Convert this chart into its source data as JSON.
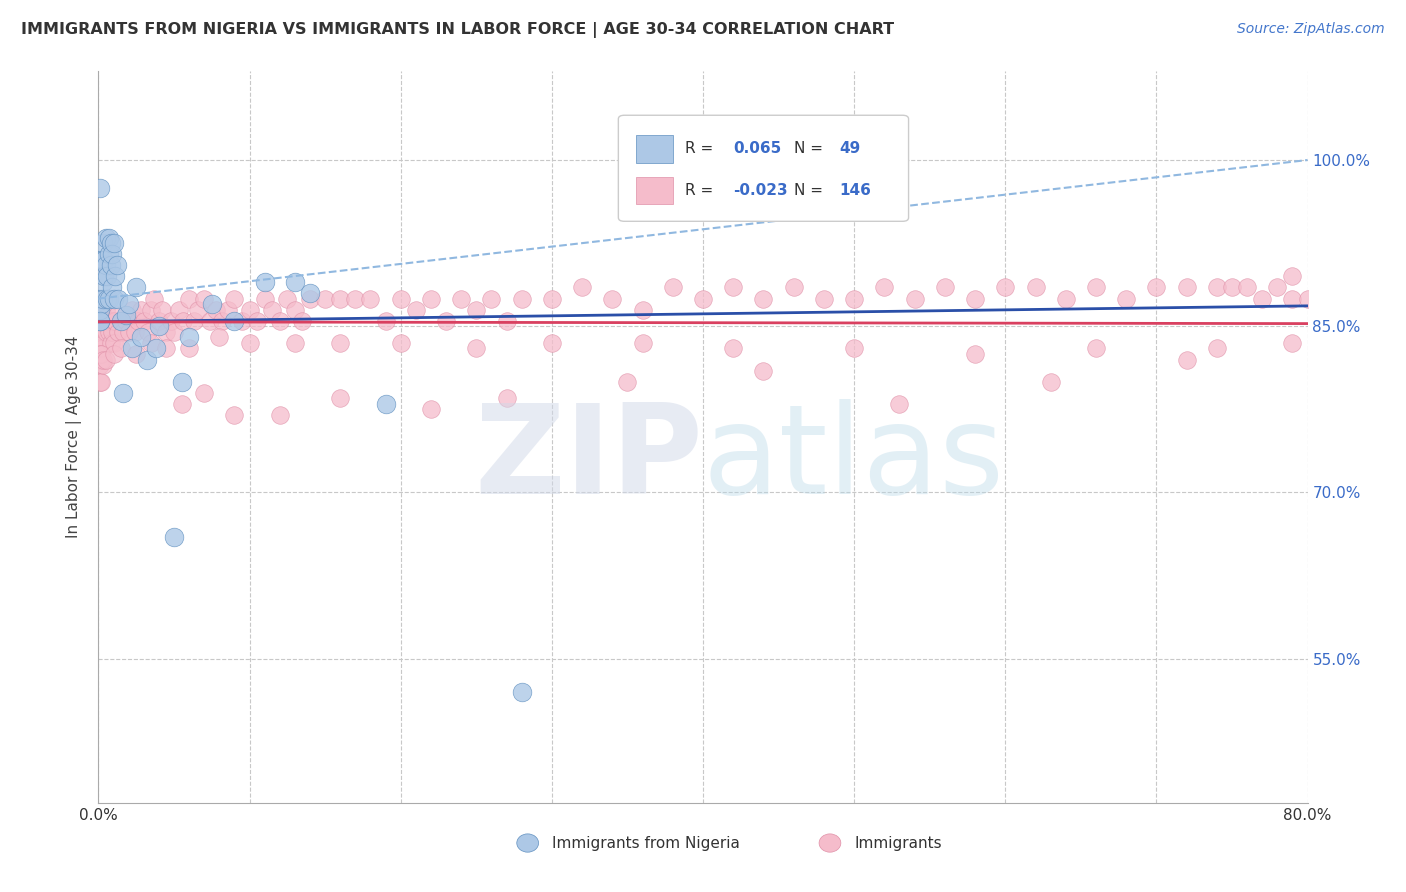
{
  "title": "IMMIGRANTS FROM NIGERIA VS IMMIGRANTS IN LABOR FORCE | AGE 30-34 CORRELATION CHART",
  "source": "Source: ZipAtlas.com",
  "ylabel": "In Labor Force | Age 30-34",
  "xlim": [
    0.0,
    0.8
  ],
  "ylim": [
    0.42,
    1.08
  ],
  "yticks": [
    0.55,
    0.7,
    0.85,
    1.0
  ],
  "ytick_labels": [
    "55.0%",
    "70.0%",
    "85.0%",
    "100.0%"
  ],
  "xtick_labels": [
    "0.0%",
    "80.0%"
  ],
  "blue_R": 0.065,
  "blue_N": 49,
  "pink_R": -0.023,
  "pink_N": 146,
  "blue_color": "#adc8e6",
  "pink_color": "#f5bccb",
  "blue_line_color": "#2a4fa8",
  "pink_line_color": "#d94060",
  "blue_dash_color": "#90b8e0",
  "grid_color": "#c8c8c8",
  "blue_x": [
    0.001,
    0.001,
    0.001,
    0.002,
    0.002,
    0.003,
    0.003,
    0.003,
    0.003,
    0.004,
    0.004,
    0.005,
    0.005,
    0.006,
    0.006,
    0.007,
    0.007,
    0.007,
    0.008,
    0.008,
    0.009,
    0.009,
    0.01,
    0.01,
    0.011,
    0.012,
    0.013,
    0.015,
    0.016,
    0.018,
    0.02,
    0.022,
    0.025,
    0.028,
    0.032,
    0.038,
    0.04,
    0.05,
    0.055,
    0.06,
    0.075,
    0.09,
    0.11,
    0.13,
    0.14,
    0.19,
    0.28,
    0.001,
    0.001
  ],
  "blue_y": [
    0.855,
    0.865,
    0.875,
    0.87,
    0.91,
    0.925,
    0.91,
    0.89,
    0.875,
    0.91,
    0.895,
    0.93,
    0.905,
    0.895,
    0.875,
    0.93,
    0.915,
    0.875,
    0.925,
    0.905,
    0.915,
    0.885,
    0.925,
    0.875,
    0.895,
    0.905,
    0.875,
    0.855,
    0.79,
    0.86,
    0.87,
    0.83,
    0.885,
    0.84,
    0.82,
    0.83,
    0.85,
    0.66,
    0.8,
    0.84,
    0.87,
    0.855,
    0.89,
    0.89,
    0.88,
    0.78,
    0.52,
    0.975,
    0.855
  ],
  "pink_x": [
    0.001,
    0.001,
    0.001,
    0.001,
    0.001,
    0.001,
    0.002,
    0.002,
    0.002,
    0.002,
    0.003,
    0.003,
    0.003,
    0.003,
    0.004,
    0.004,
    0.005,
    0.005,
    0.006,
    0.007,
    0.008,
    0.008,
    0.009,
    0.01,
    0.01,
    0.011,
    0.012,
    0.013,
    0.015,
    0.016,
    0.018,
    0.02,
    0.022,
    0.024,
    0.026,
    0.028,
    0.03,
    0.033,
    0.035,
    0.037,
    0.04,
    0.042,
    0.045,
    0.048,
    0.05,
    0.053,
    0.056,
    0.06,
    0.063,
    0.066,
    0.07,
    0.074,
    0.078,
    0.082,
    0.086,
    0.09,
    0.095,
    0.1,
    0.105,
    0.11,
    0.115,
    0.12,
    0.125,
    0.13,
    0.135,
    0.14,
    0.15,
    0.16,
    0.17,
    0.18,
    0.19,
    0.2,
    0.21,
    0.22,
    0.23,
    0.24,
    0.25,
    0.26,
    0.27,
    0.28,
    0.3,
    0.32,
    0.34,
    0.36,
    0.38,
    0.4,
    0.42,
    0.44,
    0.46,
    0.48,
    0.5,
    0.52,
    0.54,
    0.56,
    0.58,
    0.6,
    0.62,
    0.64,
    0.66,
    0.68,
    0.7,
    0.72,
    0.74,
    0.75,
    0.76,
    0.77,
    0.78,
    0.79,
    0.79,
    0.8,
    0.001,
    0.002,
    0.003,
    0.005,
    0.01,
    0.015,
    0.025,
    0.035,
    0.045,
    0.06,
    0.08,
    0.1,
    0.13,
    0.16,
    0.2,
    0.25,
    0.3,
    0.36,
    0.42,
    0.5,
    0.58,
    0.66,
    0.74,
    0.79,
    0.72,
    0.63,
    0.53,
    0.44,
    0.35,
    0.27,
    0.22,
    0.16,
    0.12,
    0.09,
    0.07,
    0.055
  ],
  "pink_y": [
    0.86,
    0.85,
    0.84,
    0.83,
    0.815,
    0.8,
    0.86,
    0.84,
    0.82,
    0.8,
    0.86,
    0.845,
    0.83,
    0.815,
    0.855,
    0.835,
    0.865,
    0.845,
    0.855,
    0.845,
    0.855,
    0.835,
    0.845,
    0.855,
    0.835,
    0.855,
    0.86,
    0.845,
    0.855,
    0.845,
    0.855,
    0.845,
    0.865,
    0.845,
    0.855,
    0.865,
    0.855,
    0.845,
    0.865,
    0.875,
    0.855,
    0.865,
    0.845,
    0.855,
    0.845,
    0.865,
    0.855,
    0.875,
    0.855,
    0.865,
    0.875,
    0.855,
    0.865,
    0.855,
    0.865,
    0.875,
    0.855,
    0.865,
    0.855,
    0.875,
    0.865,
    0.855,
    0.875,
    0.865,
    0.855,
    0.875,
    0.875,
    0.875,
    0.875,
    0.875,
    0.855,
    0.875,
    0.865,
    0.875,
    0.855,
    0.875,
    0.865,
    0.875,
    0.855,
    0.875,
    0.875,
    0.885,
    0.875,
    0.865,
    0.885,
    0.875,
    0.885,
    0.875,
    0.885,
    0.875,
    0.875,
    0.885,
    0.875,
    0.885,
    0.875,
    0.885,
    0.885,
    0.875,
    0.885,
    0.875,
    0.885,
    0.885,
    0.885,
    0.885,
    0.885,
    0.875,
    0.885,
    0.875,
    0.895,
    0.875,
    0.825,
    0.825,
    0.82,
    0.82,
    0.825,
    0.83,
    0.825,
    0.835,
    0.83,
    0.83,
    0.84,
    0.835,
    0.835,
    0.835,
    0.835,
    0.83,
    0.835,
    0.835,
    0.83,
    0.83,
    0.825,
    0.83,
    0.83,
    0.835,
    0.82,
    0.8,
    0.78,
    0.81,
    0.8,
    0.785,
    0.775,
    0.785,
    0.77,
    0.77,
    0.79,
    0.78
  ]
}
